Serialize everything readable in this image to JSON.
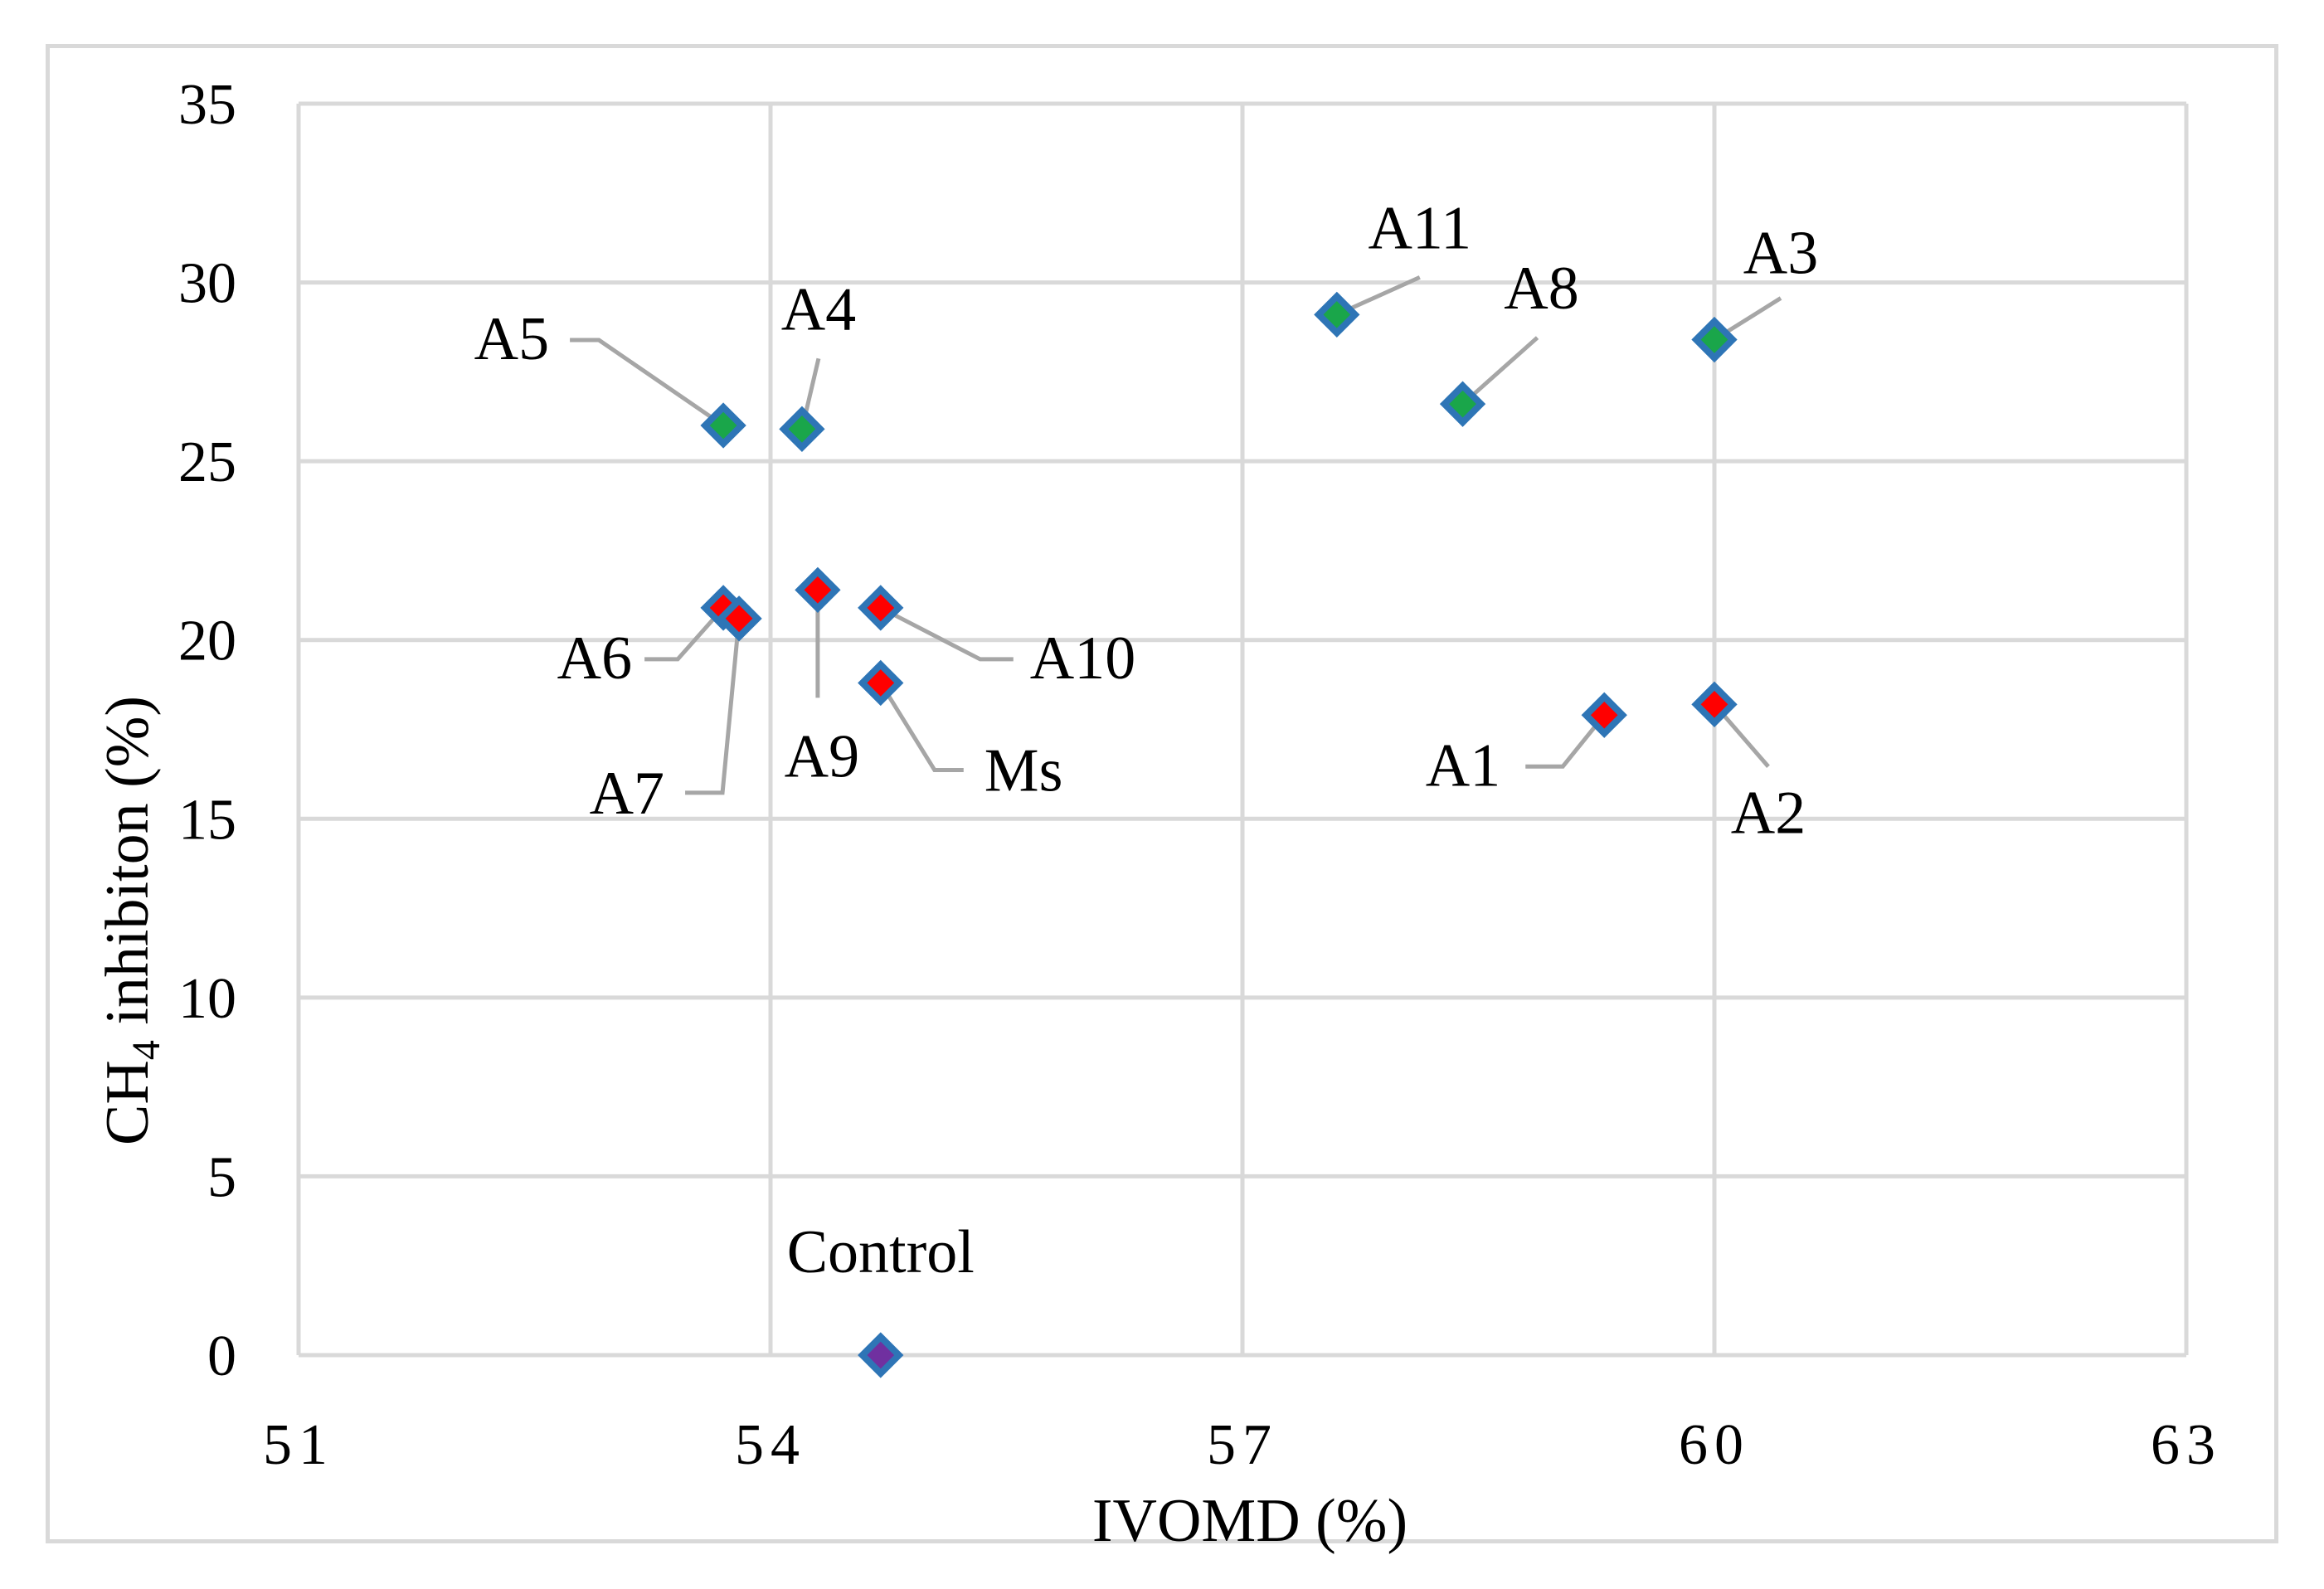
{
  "chart_data": {
    "type": "scatter",
    "title": "",
    "xlabel": "IVOMD (%)",
    "ylabel_main": "CH",
    "ylabel_sub": "4",
    "ylabel_rest": " inhibiton (%)",
    "xlim": [
      51,
      63
    ],
    "ylim": [
      0,
      35
    ],
    "xticks": [
      51,
      54,
      57,
      60,
      63
    ],
    "yticks": [
      0,
      5,
      10,
      15,
      20,
      25,
      30,
      35
    ],
    "grid": true,
    "colors": {
      "grid": "#d9d9d9",
      "marker_border": "#2e75b6",
      "green_fill": "#1aa64a",
      "red_fill": "#ff0000",
      "control_fill": "#7030a0",
      "leader_line": "#a6a6a6",
      "frame": "#d9d9d9"
    },
    "points": [
      {
        "label": "A1",
        "x": 59.3,
        "y": 17.9,
        "group": "red",
        "label_anchor": "end",
        "label_dir": "down-left"
      },
      {
        "label": "A2",
        "x": 60.0,
        "y": 18.2,
        "group": "red",
        "label_anchor": "middle",
        "label_dir": "down-right"
      },
      {
        "label": "A3",
        "x": 60.0,
        "y": 28.4,
        "group": "green",
        "label_anchor": "middle",
        "label_dir": "up-right"
      },
      {
        "label": "A4",
        "x": 54.2,
        "y": 25.9,
        "group": "green",
        "label_anchor": "middle",
        "label_dir": "up"
      },
      {
        "label": "A5",
        "x": 53.7,
        "y": 26.0,
        "group": "green",
        "label_anchor": "end",
        "label_dir": "up-left"
      },
      {
        "label": "A6",
        "x": 53.7,
        "y": 20.9,
        "group": "red",
        "label_anchor": "end",
        "label_dir": "down-left"
      },
      {
        "label": "A7",
        "x": 53.8,
        "y": 20.6,
        "group": "red",
        "label_anchor": "end",
        "label_dir": "down-left-far"
      },
      {
        "label": "A8",
        "x": 58.4,
        "y": 26.6,
        "group": "green",
        "label_anchor": "middle",
        "label_dir": "up-right"
      },
      {
        "label": "A9",
        "x": 54.3,
        "y": 21.4,
        "group": "red",
        "label_anchor": "middle",
        "label_dir": "down"
      },
      {
        "label": "A10",
        "x": 54.7,
        "y": 20.9,
        "group": "red",
        "label_anchor": "start",
        "label_dir": "right-down"
      },
      {
        "label": "A11",
        "x": 57.6,
        "y": 29.1,
        "group": "green",
        "label_anchor": "middle",
        "label_dir": "up-right"
      },
      {
        "label": "Ms",
        "x": 54.7,
        "y": 18.8,
        "group": "red",
        "label_anchor": "start",
        "label_dir": "down-right"
      },
      {
        "label": "Control",
        "x": 54.7,
        "y": 0.0,
        "group": "control",
        "label_anchor": "middle",
        "label_dir": "up-plain"
      }
    ]
  }
}
